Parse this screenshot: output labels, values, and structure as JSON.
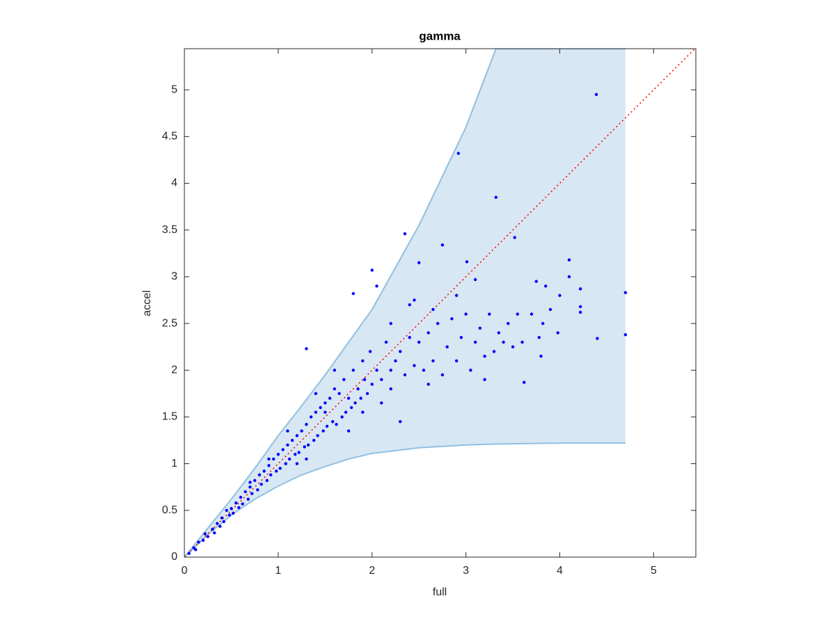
{
  "chart_data": {
    "type": "scatter",
    "title": "gamma",
    "x_label": "full",
    "y_label": "accel",
    "xlim": [
      0,
      5.45
    ],
    "ylim": [
      0,
      5.44
    ],
    "xticks": [
      0,
      1,
      2,
      3,
      4,
      5
    ],
    "yticks": [
      0,
      0.5,
      1,
      1.5,
      2,
      2.5,
      3,
      3.5,
      4,
      4.5,
      5
    ],
    "box": true,
    "band": {
      "color": "#d7e7f3",
      "edge_color": "#8fc0e2",
      "x": [
        0,
        0.25,
        0.5,
        0.75,
        1,
        1.25,
        1.5,
        1.75,
        2,
        2.5,
        3,
        3.32,
        4,
        4.7
      ],
      "upper": [
        0,
        0.31,
        0.62,
        0.95,
        1.3,
        1.62,
        1.95,
        2.3,
        2.65,
        3.55,
        4.6,
        5.44,
        5.44,
        5.44
      ],
      "lower": [
        0,
        0.24,
        0.45,
        0.62,
        0.76,
        0.88,
        0.97,
        1.05,
        1.11,
        1.17,
        1.2,
        1.21,
        1.22,
        1.22
      ]
    },
    "reference_line": {
      "color": "#ff0000",
      "style": "dotted",
      "x": [
        0,
        5.45
      ],
      "y": [
        0,
        5.45
      ]
    },
    "color": "#0000ff",
    "x": [
      4.39,
      2.92,
      3.32,
      3.52,
      2.35,
      2.75,
      4.1,
      3.01,
      2.0,
      2.05,
      2.5,
      3.1,
      4.7,
      4.7,
      4.4,
      3.62,
      3.8,
      3.2,
      2.3,
      1.3,
      1.8,
      4.22,
      4.22,
      4.22,
      4.0,
      3.98,
      3.75,
      3.85,
      4.1,
      3.82,
      3.9,
      3.6,
      3.4,
      3.55,
      0.05,
      0.1,
      0.12,
      0.15,
      0.2,
      0.22,
      0.25,
      0.3,
      0.32,
      0.35,
      0.38,
      0.4,
      0.42,
      0.45,
      0.48,
      0.5,
      0.52,
      0.55,
      0.58,
      0.6,
      0.62,
      0.65,
      0.68,
      0.7,
      0.72,
      0.75,
      0.78,
      0.8,
      0.82,
      0.85,
      0.88,
      0.9,
      0.92,
      0.95,
      0.98,
      1.0,
      1.02,
      1.05,
      1.08,
      1.1,
      1.12,
      1.15,
      1.18,
      1.2,
      1.22,
      1.25,
      1.28,
      1.3,
      1.32,
      1.35,
      1.38,
      1.4,
      1.42,
      1.45,
      1.48,
      1.5,
      1.52,
      1.55,
      1.58,
      1.6,
      1.62,
      1.65,
      1.68,
      1.7,
      1.72,
      1.75,
      1.78,
      1.8,
      1.82,
      1.85,
      1.88,
      1.9,
      1.92,
      1.95,
      1.98,
      2.0,
      2.05,
      2.1,
      2.15,
      2.2,
      2.25,
      2.3,
      2.35,
      2.4,
      2.45,
      2.5,
      2.55,
      2.6,
      2.65,
      2.7,
      2.75,
      2.8,
      2.85,
      2.9,
      2.95,
      3.0,
      3.05,
      3.1,
      3.15,
      3.2,
      3.25,
      3.3,
      3.35,
      3.45,
      3.5,
      3.7,
      3.78,
      2.2,
      2.4,
      1.6,
      1.4,
      1.1,
      0.9,
      0.7,
      1.3,
      1.9,
      2.1,
      2.6,
      2.9,
      2.45,
      2.65,
      2.2,
      1.75,
      1.5,
      1.2
    ],
    "y": [
      4.95,
      4.32,
      3.85,
      3.42,
      3.46,
      3.34,
      3.18,
      3.16,
      3.07,
      2.9,
      3.15,
      2.97,
      2.83,
      2.38,
      2.34,
      1.87,
      2.15,
      1.9,
      1.45,
      2.23,
      2.82,
      2.87,
      2.68,
      2.62,
      2.8,
      2.4,
      2.95,
      2.9,
      3.0,
      2.5,
      2.65,
      2.3,
      2.3,
      2.6,
      0.04,
      0.1,
      0.08,
      0.16,
      0.18,
      0.25,
      0.22,
      0.3,
      0.26,
      0.36,
      0.33,
      0.42,
      0.38,
      0.5,
      0.45,
      0.52,
      0.47,
      0.58,
      0.53,
      0.64,
      0.57,
      0.7,
      0.62,
      0.75,
      0.68,
      0.82,
      0.72,
      0.88,
      0.78,
      0.92,
      0.82,
      0.98,
      0.88,
      1.05,
      0.92,
      1.1,
      0.95,
      1.15,
      1.0,
      1.2,
      1.05,
      1.25,
      1.1,
      1.3,
      1.12,
      1.35,
      1.18,
      1.42,
      1.2,
      1.5,
      1.25,
      1.55,
      1.3,
      1.6,
      1.35,
      1.65,
      1.4,
      1.7,
      1.45,
      1.8,
      1.42,
      1.75,
      1.5,
      1.9,
      1.55,
      1.7,
      1.6,
      2.0,
      1.65,
      1.8,
      1.7,
      2.1,
      1.9,
      1.75,
      2.2,
      1.85,
      2.0,
      1.9,
      2.3,
      1.8,
      2.1,
      2.2,
      1.95,
      2.35,
      2.05,
      2.3,
      2.0,
      2.4,
      2.1,
      2.5,
      1.95,
      2.25,
      2.55,
      2.1,
      2.35,
      2.6,
      2.0,
      2.3,
      2.45,
      2.15,
      2.6,
      2.2,
      2.4,
      2.5,
      2.25,
      2.6,
      2.35,
      2.5,
      2.7,
      2.0,
      1.75,
      1.35,
      1.05,
      0.8,
      1.05,
      1.55,
      1.65,
      1.85,
      2.8,
      2.75,
      2.65,
      2.0,
      1.35,
      1.55,
      1.0
    ]
  }
}
